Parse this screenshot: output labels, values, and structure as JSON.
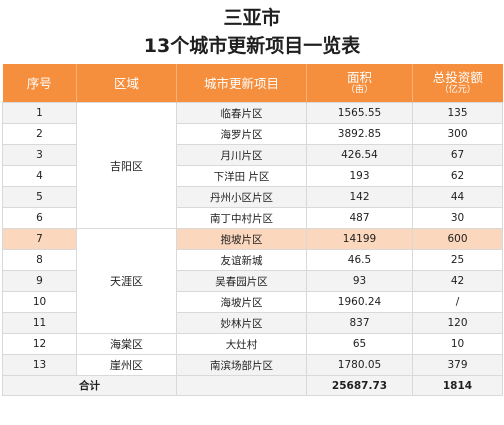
{
  "title": {
    "line1": "三亚市",
    "line2": "13个城市更新项目一览表"
  },
  "headers": {
    "index": "序号",
    "district": "区域",
    "project": "城市更新项目",
    "area": "面积",
    "area_unit": "（亩）",
    "investment": "总投资额",
    "investment_unit": "（亿元）"
  },
  "districts": [
    "吉阳区",
    "天涯区",
    "海棠区",
    "崖州区"
  ],
  "rows": [
    {
      "idx": "1",
      "project": "临春片区",
      "area": "1565.55",
      "inv": "135"
    },
    {
      "idx": "2",
      "project": "海罗片区",
      "area": "3892.85",
      "inv": "300"
    },
    {
      "idx": "3",
      "project": "月川片区",
      "area": "426.54",
      "inv": "67"
    },
    {
      "idx": "4",
      "project": "下洋田 片区",
      "area": "193",
      "inv": "62"
    },
    {
      "idx": "5",
      "project": "丹州小区片区",
      "area": "142",
      "inv": "44"
    },
    {
      "idx": "6",
      "project": "南丁中村片区",
      "area": "487",
      "inv": "30"
    },
    {
      "idx": "7",
      "project": "抱坡片区",
      "area": "14199",
      "inv": "600"
    },
    {
      "idx": "8",
      "project": "友谊新城",
      "area": "46.5",
      "inv": "25"
    },
    {
      "idx": "9",
      "project": "吴春园片区",
      "area": "93",
      "inv": "42"
    },
    {
      "idx": "10",
      "project": "海坡片区",
      "area": "1960.24",
      "inv": "/"
    },
    {
      "idx": "11",
      "project": "妙林片区",
      "area": "837",
      "inv": "120"
    },
    {
      "idx": "12",
      "project": "大灶村",
      "area": "65",
      "inv": "10"
    },
    {
      "idx": "13",
      "project": "南滨场部片区",
      "area": "1780.05",
      "inv": "379"
    }
  ],
  "total": {
    "label": "合计",
    "area": "25687.73",
    "inv": "1814"
  },
  "colors": {
    "header_bg": "#f58f3e",
    "highlight_row": "#fbd7bd",
    "zebra": "#f3f3f3"
  }
}
